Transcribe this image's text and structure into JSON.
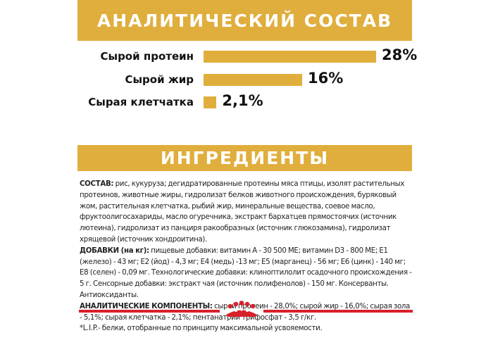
{
  "header": {
    "title": "АНАЛИТИЧЕСКИЙ СОСТАВ"
  },
  "analysis": [
    {
      "label": "Сырой протеин",
      "value_text": "28%",
      "value": 28.0
    },
    {
      "label": "Сырой жир",
      "value_text": "16%",
      "value": 16.0
    },
    {
      "label": "Сырая клетчатка",
      "value_text": "2,1%",
      "value": 2.1
    }
  ],
  "ingredients_section": {
    "title": "ИНГРЕДИЕНТЫ",
    "composition_key": "СОСТАВ:",
    "composition_text": " рис, кукуруза; дегидратированные протеины мяса птицы, изолят растительных протеинов, животные жиры, гидролизат белков животного происхождения, буряковый жом, растительная клетчатка, рыбий жир, минеральные вещества, соевое масло, фруктоолигосахариды, масло огуречника, экстракт бархатцев прямостоячих (источник лютеина), гидролизат из панциря ракообразных (источник глюкозамина), гидролизат хрящевой (источник хондроитина).",
    "additives_key": "ДОБАВКИ (на кг):",
    "additives_text": " пищевые добавки: витамин А - 30 500 МЕ; витамин D3 - 800 МЕ; Е1 (железо) - 43 мг; Е2 (йод) - 4,3 мг; Е4 (медь) -13 мг; Е5 (марганец) - 56 мг; Е6 (цинк) - 140 мг; Е8 (селен) - 0,09 мг. Технологические добавки: клиноптилолит осадочного происхождения - 5 г. Сенсорные добавки: экстракт чая (источник полифенолов) - 150 мг. Консерванты. Антиоксиданты.",
    "components_key": "АНАЛИТИЧЕСКИЕ КОМПОНЕНТЫ:",
    "components_text": " сырой протеин - 28,0%; сырой жир - 16,0%; сырая зола - 5,1%; сырая клетчатка - 2,1%; пентанатрий трифосфат - 3,5 г/кг.",
    "footnote": "*L.I.P.- белки, отобранные по принципу максимальной усвояемости."
  },
  "colors": {
    "accent": "#e0ae3c",
    "brand_red": "#d8202a",
    "text": "#111111"
  },
  "logo": {
    "icon": "royal-canin-crown-icon"
  }
}
